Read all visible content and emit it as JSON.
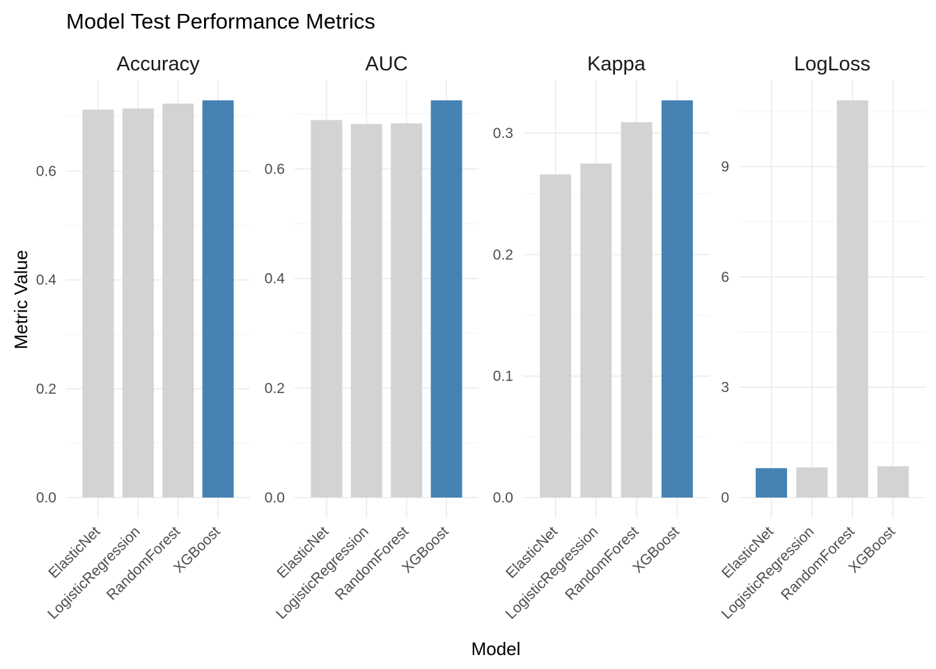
{
  "chart_data": {
    "type": "bar",
    "title": "Model Test Performance Metrics",
    "xlabel": "Model",
    "ylabel": "Metric Value",
    "grid": true,
    "legend": "none",
    "colors": {
      "highlight": "#4682B4",
      "default": "#D3D3D3"
    },
    "categories": [
      "ElasticNet",
      "LogisticRegression",
      "RandomForest",
      "XGBoost"
    ],
    "panels": [
      {
        "name": "Accuracy",
        "values": [
          0.713,
          0.715,
          0.724,
          0.73
        ],
        "highlight": [
          false,
          false,
          false,
          true
        ],
        "ylim": [
          0,
          0.73
        ],
        "yticks": [
          0.0,
          0.2,
          0.4,
          0.6
        ],
        "yticklabels": [
          "0.0",
          "0.2",
          "0.4",
          "0.6"
        ]
      },
      {
        "name": "AUC",
        "values": [
          0.689,
          0.682,
          0.683,
          0.725
        ],
        "highlight": [
          false,
          false,
          false,
          true
        ],
        "ylim": [
          0,
          0.725
        ],
        "yticks": [
          0.0,
          0.2,
          0.4,
          0.6
        ],
        "yticklabels": [
          "0.0",
          "0.2",
          "0.4",
          "0.6"
        ]
      },
      {
        "name": "Kappa",
        "values": [
          0.266,
          0.275,
          0.309,
          0.327
        ],
        "highlight": [
          false,
          false,
          false,
          true
        ],
        "ylim": [
          0,
          0.327
        ],
        "yticks": [
          0.0,
          0.1,
          0.2,
          0.3
        ],
        "yticklabels": [
          "0.0",
          "0.1",
          "0.2",
          "0.3"
        ]
      },
      {
        "name": "LogLoss",
        "values": [
          0.8,
          0.82,
          10.8,
          0.85
        ],
        "highlight": [
          true,
          false,
          false,
          false
        ],
        "ylim": [
          0,
          10.8
        ],
        "yticks": [
          0,
          3,
          6,
          9
        ],
        "yticklabels": [
          "0",
          "3",
          "6",
          "9"
        ]
      }
    ]
  }
}
